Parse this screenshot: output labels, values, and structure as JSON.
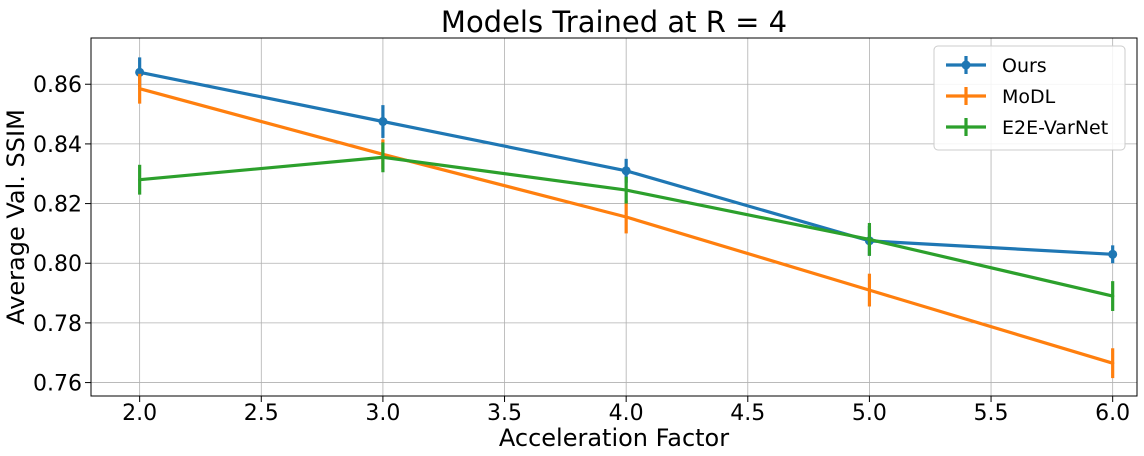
{
  "chart_data": {
    "type": "line",
    "title": "Models Trained at R = 4",
    "xlabel": "Acceleration Factor",
    "ylabel": "Average Val. SSIM",
    "xlim": [
      1.8,
      6.1
    ],
    "ylim": [
      0.7555,
      0.8755
    ],
    "xticks": [
      2.0,
      2.5,
      3.0,
      3.5,
      4.0,
      4.5,
      5.0,
      5.5,
      6.0
    ],
    "xtick_labels": [
      "2.0",
      "2.5",
      "3.0",
      "3.5",
      "4.0",
      "4.5",
      "5.0",
      "5.5",
      "6.0"
    ],
    "yticks": [
      0.76,
      0.78,
      0.8,
      0.82,
      0.84,
      0.86
    ],
    "ytick_labels": [
      "0.76",
      "0.78",
      "0.80",
      "0.82",
      "0.84",
      "0.86"
    ],
    "grid": true,
    "legend_position": "top-right",
    "x": [
      2.0,
      3.0,
      4.0,
      5.0,
      6.0
    ],
    "series": [
      {
        "name": "Ours",
        "color": "#1f77b4",
        "values": [
          0.864,
          0.8475,
          0.831,
          0.8075,
          0.803
        ],
        "errors": [
          0.005,
          0.0055,
          0.004,
          0.005,
          0.003
        ],
        "marker": "circle"
      },
      {
        "name": "MoDL",
        "color": "#ff7f0e",
        "values": [
          0.8585,
          0.8365,
          0.8155,
          0.791,
          0.7665
        ],
        "errors": [
          0.005,
          0.005,
          0.0055,
          0.0055,
          0.005
        ],
        "marker": "none"
      },
      {
        "name": "E2E-VarNet",
        "color": "#2ca02c",
        "values": [
          0.828,
          0.8355,
          0.8245,
          0.808,
          0.789
        ],
        "errors": [
          0.005,
          0.005,
          0.0045,
          0.0055,
          0.005
        ],
        "marker": "none"
      }
    ]
  }
}
